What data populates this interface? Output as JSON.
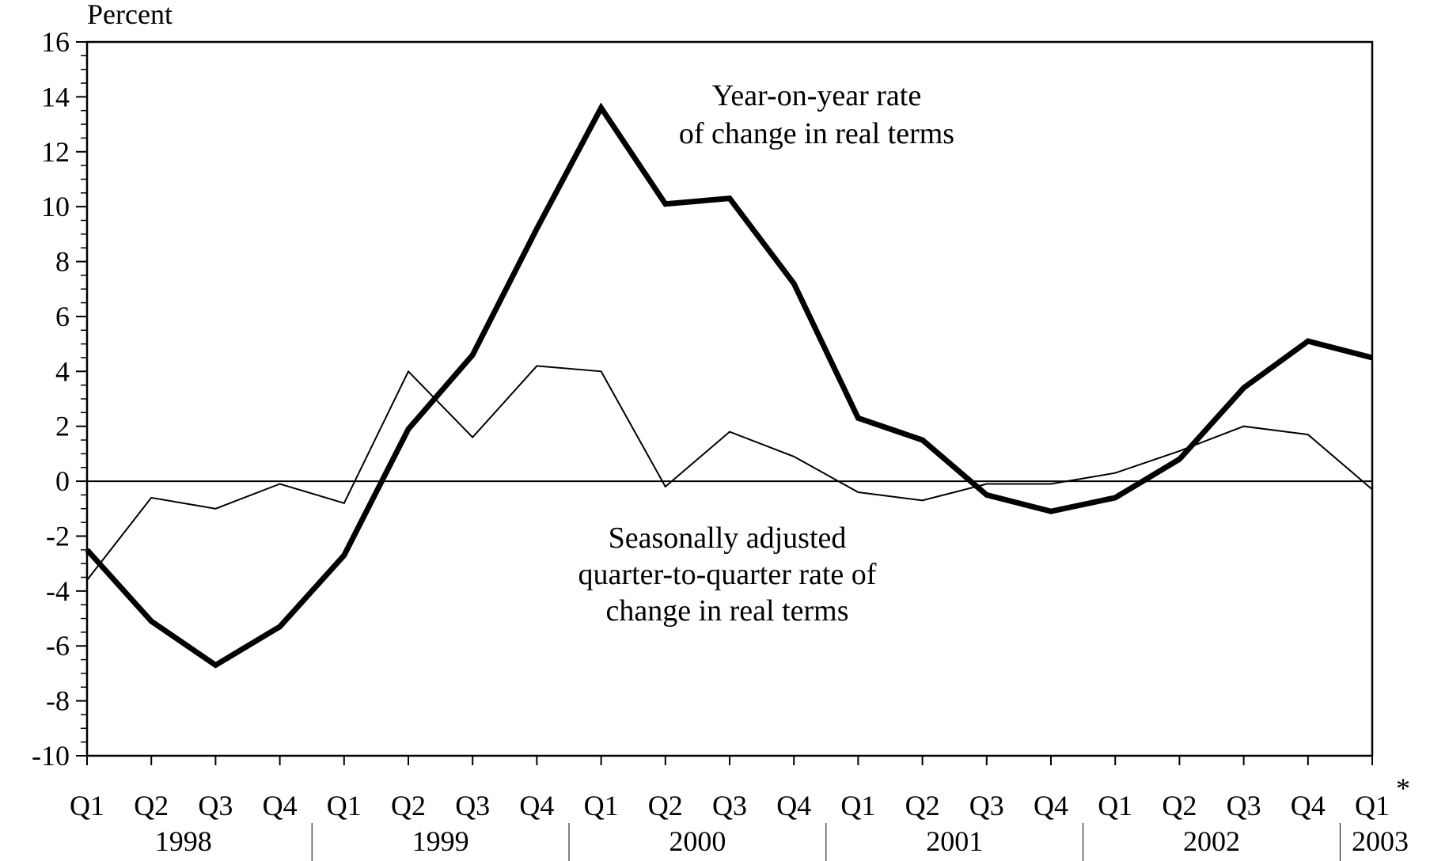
{
  "chart_data": {
    "type": "line",
    "ylabel": "Percent",
    "ylim": [
      -10,
      16
    ],
    "yticks": [
      16,
      14,
      12,
      10,
      8,
      6,
      4,
      2,
      0,
      -2,
      -4,
      -6,
      -8,
      -10
    ],
    "x": [
      "Q1",
      "Q2",
      "Q3",
      "Q4",
      "Q1",
      "Q2",
      "Q3",
      "Q4",
      "Q1",
      "Q2",
      "Q3",
      "Q4",
      "Q1",
      "Q2",
      "Q3",
      "Q4",
      "Q1",
      "Q2",
      "Q3",
      "Q4",
      "Q1"
    ],
    "years": [
      "1998",
      "1999",
      "2000",
      "2001",
      "2002",
      "2003"
    ],
    "footnote_marker": "*",
    "series": [
      {
        "name": "Year-on-year rate of change in real terms",
        "values": [
          -2.5,
          -5.1,
          -6.7,
          -5.3,
          -2.7,
          1.9,
          4.6,
          9.2,
          13.6,
          10.1,
          10.3,
          7.2,
          2.3,
          1.5,
          -0.5,
          -1.1,
          -0.6,
          0.8,
          3.4,
          5.1,
          4.5
        ],
        "color": "#000000",
        "style": "thick"
      },
      {
        "name": "Seasonally adjusted quarter-to-quarter rate of change in real terms",
        "values": [
          -3.6,
          -0.6,
          -1.0,
          -0.1,
          -0.8,
          4.0,
          1.6,
          4.2,
          4.0,
          -0.2,
          1.8,
          0.9,
          -0.4,
          -0.7,
          -0.1,
          -0.1,
          0.3,
          1.1,
          2.0,
          1.7,
          -0.3
        ],
        "color": "#000000",
        "style": "thin"
      }
    ],
    "annotations": {
      "yoy_line1": "Year-on-year rate",
      "yoy_line2": "of change in real terms",
      "qoq_line1": "Seasonally adjusted",
      "qoq_line2": "quarter-to-quarter rate of",
      "qoq_line3": "change in real terms"
    },
    "zero_line": true,
    "grid": false,
    "legend": "none"
  }
}
